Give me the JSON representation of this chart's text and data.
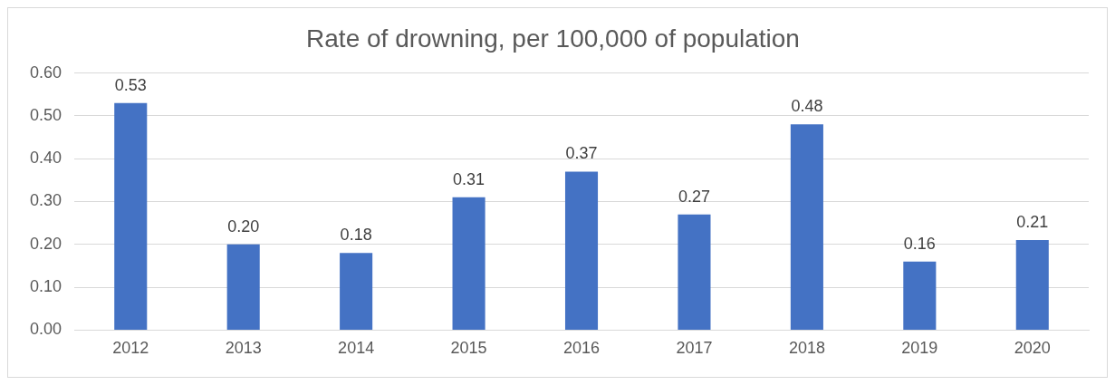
{
  "chart_data": {
    "type": "bar",
    "title": "Rate of drowning, per 100,000 of population",
    "categories": [
      "2012",
      "2013",
      "2014",
      "2015",
      "2016",
      "2017",
      "2018",
      "2019",
      "2020"
    ],
    "values": [
      0.53,
      0.2,
      0.18,
      0.31,
      0.37,
      0.27,
      0.48,
      0.16,
      0.21
    ],
    "value_labels": [
      "0.53",
      "0.20",
      "0.18",
      "0.31",
      "0.37",
      "0.27",
      "0.48",
      "0.16",
      "0.21"
    ],
    "color": "#4472c4",
    "ylim": [
      0,
      0.6
    ],
    "yticks": [
      {
        "value": 0,
        "label": "0.00"
      },
      {
        "value": 0.1,
        "label": "0.10"
      },
      {
        "value": 0.2,
        "label": "0.20"
      },
      {
        "value": 0.3,
        "label": "0.30"
      },
      {
        "value": 0.4,
        "label": "0.40"
      },
      {
        "value": 0.5,
        "label": "0.50"
      },
      {
        "value": 0.6,
        "label": "0.60"
      }
    ],
    "grid": "y",
    "legend": false
  }
}
